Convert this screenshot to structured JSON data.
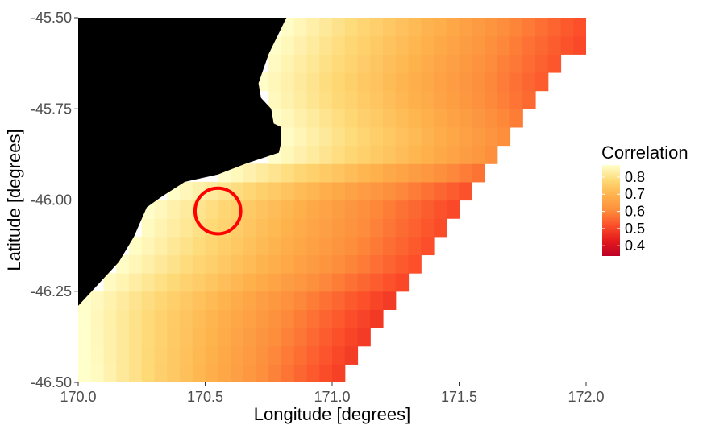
{
  "chart_data": {
    "type": "heatmap",
    "title": "",
    "xlabel": "Longitude [degrees]",
    "ylabel": "Latitude [degrees]",
    "xlim": [
      170.0,
      172.0
    ],
    "ylim": [
      -46.5,
      -45.5
    ],
    "x_ticks": [
      "170.0",
      "170.5",
      "171.0",
      "171.5",
      "172.0"
    ],
    "y_ticks": [
      "-45.50",
      "-45.75",
      "-46.00",
      "-46.25",
      "-46.50"
    ],
    "grid": false,
    "cell_size_degrees": 0.05,
    "land_color": "#000000",
    "legend": {
      "title": "Correlation",
      "position": "right",
      "labels": [
        "0.8",
        "0.7",
        "0.6",
        "0.5",
        "0.4"
      ],
      "range": [
        0.34,
        0.87
      ],
      "colors": [
        "#ffffcc",
        "#fed976",
        "#feb24c",
        "#fd8d3c",
        "#fc4e2a",
        "#e31a1c",
        "#bd0026"
      ]
    },
    "correlation_model": {
      "max_value": 0.87,
      "decay_per_degree_offshore": 0.3,
      "note_none": ""
    },
    "coastline": [
      [
        170.0,
        -46.29
      ],
      [
        170.08,
        -46.23
      ],
      [
        170.16,
        -46.17
      ],
      [
        170.22,
        -46.1
      ],
      [
        170.27,
        -46.02
      ],
      [
        170.33,
        -45.99
      ],
      [
        170.42,
        -45.95
      ],
      [
        170.55,
        -45.93
      ],
      [
        170.66,
        -45.9
      ],
      [
        170.79,
        -45.87
      ],
      [
        170.8,
        -45.84
      ],
      [
        170.8,
        -45.8
      ],
      [
        170.77,
        -45.79
      ],
      [
        170.76,
        -45.75
      ],
      [
        170.72,
        -45.72
      ],
      [
        170.71,
        -45.68
      ],
      [
        170.75,
        -45.6
      ],
      [
        170.82,
        -45.5
      ]
    ],
    "offshore_edge": [
      [
        172.0,
        -45.5
      ],
      [
        172.0,
        -45.58
      ],
      [
        171.9,
        -45.58
      ],
      [
        171.9,
        -45.63
      ],
      [
        171.85,
        -45.63
      ],
      [
        171.85,
        -45.68
      ],
      [
        171.8,
        -45.68
      ],
      [
        171.8,
        -45.73
      ],
      [
        171.75,
        -45.73
      ],
      [
        171.75,
        -45.78
      ],
      [
        171.7,
        -45.78
      ],
      [
        171.7,
        -45.83
      ],
      [
        171.65,
        -45.83
      ],
      [
        171.65,
        -45.88
      ],
      [
        171.6,
        -45.88
      ],
      [
        171.6,
        -45.93
      ],
      [
        171.55,
        -45.93
      ],
      [
        171.55,
        -45.98
      ],
      [
        171.5,
        -45.98
      ],
      [
        171.5,
        -46.03
      ],
      [
        171.45,
        -46.03
      ],
      [
        171.45,
        -46.08
      ],
      [
        171.4,
        -46.08
      ],
      [
        171.4,
        -46.13
      ],
      [
        171.35,
        -46.13
      ],
      [
        171.35,
        -46.18
      ],
      [
        171.3,
        -46.18
      ],
      [
        171.3,
        -46.23
      ],
      [
        171.25,
        -46.23
      ],
      [
        171.25,
        -46.28
      ],
      [
        171.2,
        -46.28
      ],
      [
        171.2,
        -46.33
      ],
      [
        171.15,
        -46.33
      ],
      [
        171.15,
        -46.38
      ],
      [
        171.1,
        -46.38
      ],
      [
        171.1,
        -46.43
      ],
      [
        171.05,
        -46.43
      ],
      [
        171.05,
        -46.48
      ],
      [
        171.0,
        -46.48
      ],
      [
        171.0,
        -46.5
      ]
    ],
    "annotations": [
      {
        "type": "circle",
        "center": [
          170.55,
          -46.03
        ],
        "radius_degrees": 0.1,
        "color": "#ff0000"
      }
    ]
  }
}
